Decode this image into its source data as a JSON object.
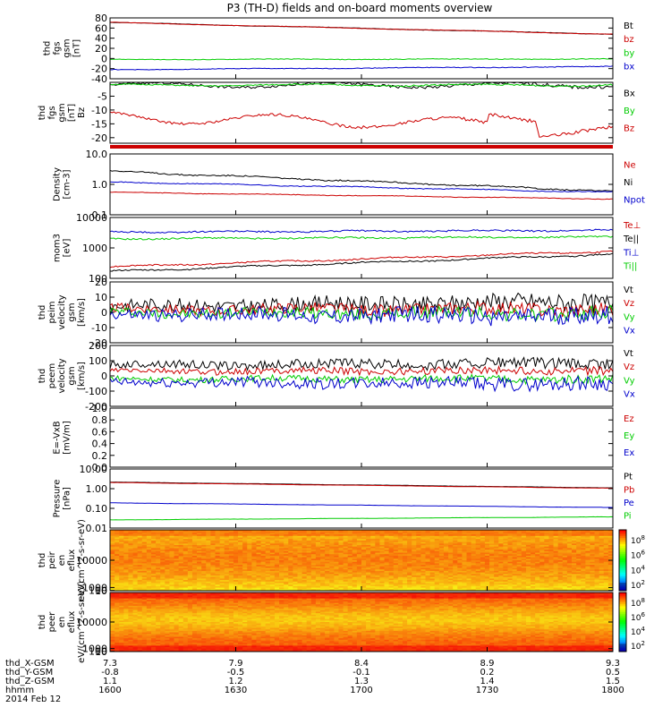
{
  "title": "P3 (TH-D) fields and on-board moments overview",
  "colors": {
    "black": "#000000",
    "red": "#cc0000",
    "green": "#00cc00",
    "blue": "#0000cc"
  },
  "chart_data": [
    {
      "type": "line",
      "ylabel": "thd fgs gsm [nT]",
      "ylim": [
        -40,
        80
      ],
      "yticks": [
        "80",
        "60",
        "40",
        "20",
        "0",
        "-20",
        "-40"
      ],
      "yticks_values": [
        80,
        60,
        40,
        20,
        0,
        -20,
        -40
      ],
      "series": [
        {
          "name": "Bt",
          "color": "black",
          "start": 71,
          "end": 48,
          "noise": 0.3,
          "wave": 0.5
        },
        {
          "name": "bz",
          "color": "red",
          "start": 71,
          "end": 48,
          "noise": 0.3,
          "wave": 0.5
        },
        {
          "name": "by",
          "color": "green",
          "start": -2,
          "end": -1,
          "noise": 0.5,
          "wave": 0.5
        },
        {
          "name": "bx",
          "color": "blue",
          "start": -22,
          "end": -16,
          "noise": 0.5,
          "wave": 0.5
        }
      ]
    },
    {
      "type": "line",
      "ylabel": "thd fgs gsm [nT] Bz",
      "ylim": [
        -22,
        0
      ],
      "yticks": [
        "-5",
        "-10",
        "-15",
        "-20"
      ],
      "yticks_values": [
        -5,
        -10,
        -15,
        -20
      ],
      "series": [
        {
          "name": "Bx",
          "color": "black",
          "start": -1,
          "end": -1,
          "noise": 0.4,
          "wave": 0.8
        },
        {
          "name": "By",
          "color": "green",
          "start": -1,
          "end": -1,
          "noise": 0.2,
          "wave": 0.3
        },
        {
          "name": "Bz",
          "color": "red",
          "start": -12.5,
          "end": -16,
          "noise": 0.4,
          "wave": 2.0
        }
      ]
    },
    {
      "type": "line",
      "log": true,
      "ylabel": "Density [cm-3]",
      "ylim": [
        0.1,
        10
      ],
      "yticks": [
        "10.0",
        "1.0",
        "0.1"
      ],
      "yticks_values": [
        10,
        1,
        0.1
      ],
      "series": [
        {
          "name": "Ne",
          "color": "red",
          "start": 0.55,
          "end": 0.33,
          "noise": 0.02,
          "wave": 0.02
        },
        {
          "name": "Ni",
          "color": "black",
          "start": 2.7,
          "end": 0.6,
          "noise": 0.05,
          "wave": 0.05
        },
        {
          "name": "Npot",
          "color": "blue",
          "start": 1.2,
          "end": 0.55,
          "noise": 0.03,
          "wave": 0.03
        }
      ]
    },
    {
      "type": "line",
      "log": true,
      "ylabel": "mom3 [eV]",
      "ylim": [
        100,
        10000
      ],
      "yticks": [
        "10000",
        "1000",
        "100"
      ],
      "yticks_values": [
        10000,
        1000,
        100
      ],
      "series": [
        {
          "name": "Te⊥",
          "color": "red",
          "start": 240,
          "end": 780,
          "noise": 0.05,
          "wave": 0.05
        },
        {
          "name": "Te||",
          "color": "black",
          "start": 170,
          "end": 620,
          "noise": 0.05,
          "wave": 0.05
        },
        {
          "name": "Ti⊥",
          "color": "blue",
          "start": 3300,
          "end": 3800,
          "noise": 0.06,
          "wave": 0.04
        },
        {
          "name": "Ti||",
          "color": "green",
          "start": 2000,
          "end": 2300,
          "noise": 0.06,
          "wave": 0.04
        }
      ]
    },
    {
      "type": "line",
      "ylabel": "thd peim velocity gsm [km/s]",
      "ylim": [
        -20,
        20
      ],
      "yticks": [
        "20",
        "10",
        "0",
        "-10",
        "-20"
      ],
      "yticks_values": [
        20,
        10,
        0,
        -10,
        -20
      ],
      "series": [
        {
          "name": "Vt",
          "color": "black",
          "start": 4,
          "end": 7,
          "noise": 4,
          "wave": 1
        },
        {
          "name": "Vz",
          "color": "red",
          "start": 2,
          "end": 2,
          "noise": 3,
          "wave": 1
        },
        {
          "name": "Vy",
          "color": "green",
          "start": 0,
          "end": -1,
          "noise": 3,
          "wave": 1
        },
        {
          "name": "Vx",
          "color": "blue",
          "start": -1,
          "end": -3,
          "noise": 4,
          "wave": 1
        }
      ]
    },
    {
      "type": "line",
      "ylabel": "thd peem velocity gsm [km/s]",
      "ylim": [
        -200,
        200
      ],
      "yticks": [
        "200",
        "100",
        "0",
        "-100",
        "-200"
      ],
      "yticks_values": [
        200,
        100,
        0,
        -100,
        -200
      ],
      "series": [
        {
          "name": "Vt",
          "color": "black",
          "start": 70,
          "end": 85,
          "noise": 25,
          "wave": 8
        },
        {
          "name": "Vz",
          "color": "red",
          "start": 30,
          "end": 35,
          "noise": 18,
          "wave": 6
        },
        {
          "name": "Vy",
          "color": "green",
          "start": -20,
          "end": -20,
          "noise": 18,
          "wave": 6
        },
        {
          "name": "Vx",
          "color": "blue",
          "start": -40,
          "end": -55,
          "noise": 30,
          "wave": 6
        }
      ]
    },
    {
      "type": "line",
      "ylabel": "E=-VxB [mV/m]",
      "ylim": [
        0,
        1
      ],
      "yticks": [
        "1.0",
        "0.8",
        "0.6",
        "0.4",
        "0.2",
        "0.0"
      ],
      "yticks_values": [
        1,
        0.8,
        0.6,
        0.4,
        0.2,
        0
      ],
      "series": [
        {
          "name": "Ez",
          "color": "red",
          "values": []
        },
        {
          "name": "Ey",
          "color": "green",
          "values": []
        },
        {
          "name": "Ex",
          "color": "blue",
          "values": []
        }
      ]
    },
    {
      "type": "line",
      "log": true,
      "ylabel": "Pressure [nPa]",
      "ylim": [
        0.01,
        10
      ],
      "yticks": [
        "10.00",
        "1.00",
        "0.10",
        "0.01"
      ],
      "yticks_values": [
        10,
        1,
        0.1,
        0.01
      ],
      "series": [
        {
          "name": "Pt",
          "color": "black",
          "start": 2.15,
          "end": 1.1,
          "noise": 0.01,
          "wave": 0.01
        },
        {
          "name": "Pb",
          "color": "red",
          "start": 2.05,
          "end": 1.05,
          "noise": 0.01,
          "wave": 0.01
        },
        {
          "name": "Pe",
          "color": "blue",
          "start": 0.19,
          "end": 0.11,
          "noise": 0.01,
          "wave": 0.01
        },
        {
          "name": "Pi",
          "color": "green",
          "start": 0.026,
          "end": 0.037,
          "noise": 0.01,
          "wave": 0.01
        }
      ]
    },
    {
      "type": "heatmap",
      "ylabel": "thd peir en eflux eV/(cm^2-s-sr-eV)",
      "ylim": [
        5,
        20000
      ],
      "yticks": [
        "10000",
        "1000",
        "100",
        "10"
      ],
      "yticks_values": [
        10000,
        1000,
        100,
        10
      ],
      "colorbar_ticks": [
        "10^8",
        "10^6",
        "10^4",
        "10^2"
      ]
    },
    {
      "type": "heatmap",
      "ylabel": "thd peer en eflux eV/(cm^2-s-sr-eV)",
      "ylim": [
        5,
        20000
      ],
      "yticks": [
        "10000",
        "1000",
        "100",
        "10"
      ],
      "yticks_values": [
        10000,
        1000,
        100,
        10
      ],
      "colorbar_ticks": [
        "10^8",
        "10^6",
        "10^4",
        "10^2"
      ]
    }
  ],
  "xaxis": {
    "rows": [
      {
        "label": "thd_X-GSM",
        "values": [
          "7.3",
          "7.9",
          "8.4",
          "8.9",
          "9.3"
        ]
      },
      {
        "label": "thd_Y-GSM",
        "values": [
          "-0.8",
          "-0.5",
          "-0.1",
          "0.2",
          "0.5"
        ]
      },
      {
        "label": "thd_Z-GSM",
        "values": [
          "1.1",
          "1.2",
          "1.3",
          "1.4",
          "1.5"
        ]
      },
      {
        "label": "hhmm",
        "values": [
          "1600",
          "1630",
          "1700",
          "1730",
          "1800"
        ]
      }
    ],
    "date": "2014 Feb 12"
  }
}
